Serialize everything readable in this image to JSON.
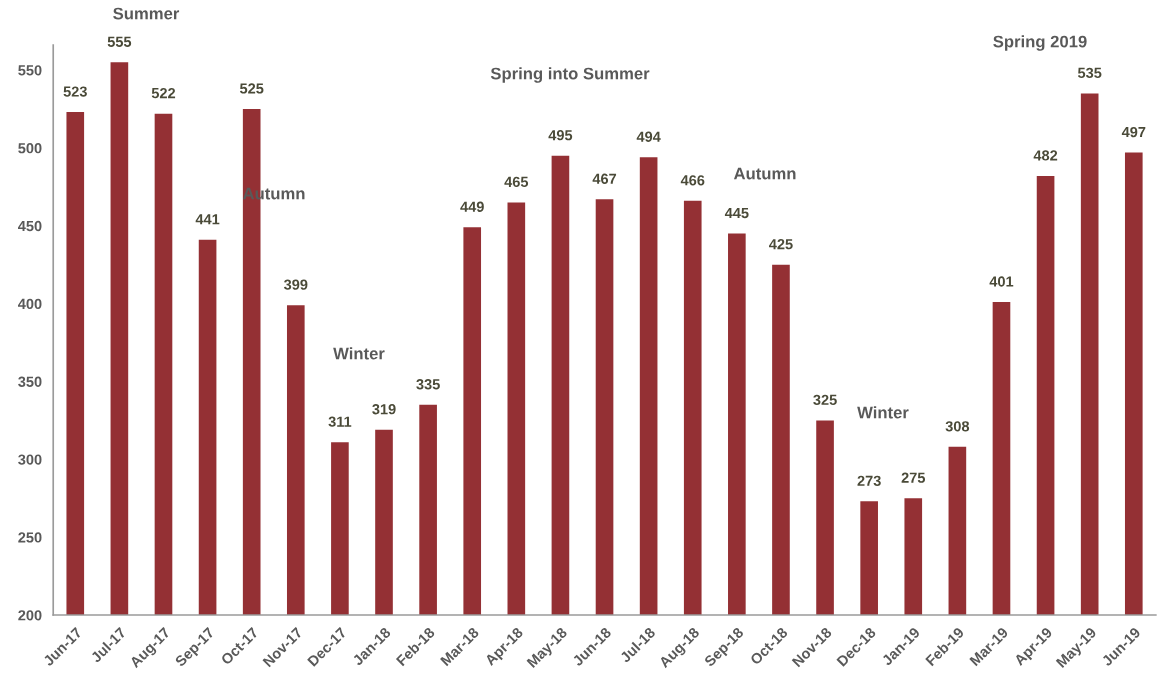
{
  "chart_data": {
    "type": "bar",
    "categories": [
      "Jun-17",
      "Jul-17",
      "Aug-17",
      "Sep-17",
      "Oct-17",
      "Nov-17",
      "Dec-17",
      "Jan-18",
      "Feb-18",
      "Mar-18",
      "Apr-18",
      "May-18",
      "Jun-18",
      "Jul-18",
      "Aug-18",
      "Sep-18",
      "Oct-18",
      "Nov-18",
      "Dec-18",
      "Jan-19",
      "Feb-19",
      "Mar-19",
      "Apr-19",
      "May-19",
      "Jun-19"
    ],
    "values": [
      523,
      555,
      522,
      441,
      525,
      399,
      311,
      319,
      335,
      449,
      465,
      495,
      467,
      494,
      466,
      445,
      425,
      325,
      273,
      275,
      308,
      401,
      482,
      535,
      497
    ],
    "color": "#943034",
    "ylim": [
      200,
      566
    ],
    "yticks": [
      200,
      250,
      300,
      350,
      400,
      450,
      500,
      550
    ],
    "data_labels": true,
    "annotations": [
      "Summer",
      "Autumn",
      "Winter",
      "Spring into Summer",
      "Autumn",
      "Winter",
      "Spring 2019"
    ]
  }
}
